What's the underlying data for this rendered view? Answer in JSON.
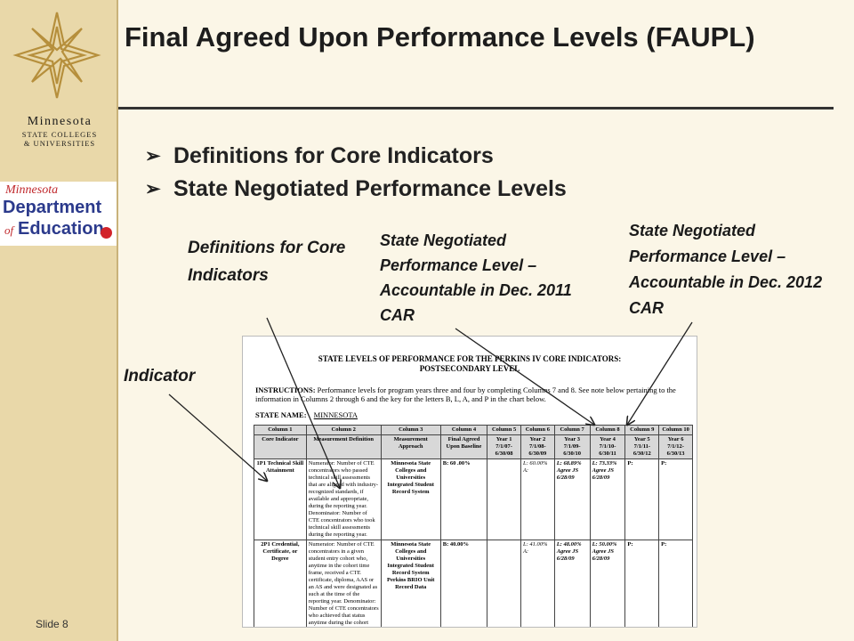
{
  "title": "Final Agreed Upon Performance Levels (FAUPL)",
  "bullets": [
    "Definitions for Core Indicators",
    "State Negotiated Performance Levels"
  ],
  "bullet_icon": "arrow-bullet-icon",
  "slide_number": "Slide 8",
  "logos": {
    "msc": {
      "name": "Minnesota",
      "line2": "STATE COLLEGES",
      "line3": "& UNIVERSITIES"
    },
    "mde": {
      "minnesota": "Minnesota",
      "department": "Department",
      "of": "of",
      "education": "Education"
    }
  },
  "callouts": {
    "definitions": "Definitions for Core Indicators",
    "indicator": "Indicator",
    "snpl_2011": "State Negotiated Performance Level – Accountable in Dec. 2011 CAR",
    "snpl_2012": "State Negotiated Performance Level – Accountable in Dec. 2012 CAR"
  },
  "document": {
    "title_line1": "STATE LEVELS OF PERFORMANCE FOR THE PERKINS IV CORE INDICATORS:",
    "title_line2": "POSTSECONDARY LEVEL",
    "instructions_label": "INSTRUCTIONS:",
    "instructions": "Performance levels for program years three and four by completing Columns 7 and 8. See note below pertaining to the information in Columns 2 through 6 and the key for the letters B, L, A, and P in the chart below.",
    "state_label": "STATE NAME:",
    "state_value": "MINNESOTA",
    "columns": [
      "Column 1",
      "Column 2",
      "Column 3",
      "Column 4",
      "Column 5",
      "Column 6",
      "Column 7",
      "Column 8",
      "Column 9",
      "Column 10"
    ],
    "headers": [
      "Core Indicator",
      "Measurement Definition",
      "Measurement Approach",
      "Final Agreed Upon Baseline",
      "Year 1 7/1/07-6/30/08",
      "Year 2 7/1/08-6/30/09",
      "Year 3 7/1/09-6/30/10",
      "Year 4 7/1/10-6/30/11",
      "Year 5 7/1/11-6/30/12",
      "Year 6 7/1/12-6/30/13"
    ],
    "rows": [
      {
        "indicator": "1P1 Technical Skill Attainment",
        "definition": "Numerator: Number of CTE concentrators who passed technical skill assessments that are aligned with industry-recognized standards, if available and appropriate, during the reporting year. Denominator: Number of CTE concentrators who took technical skill assessments during the reporting year.",
        "approach": "Minnesota State Colleges and Universities Integrated Student Record System",
        "baseline": "B: 60 .00%",
        "year1": "",
        "year2": "L: 60.00% A:",
        "year3": "L: 68.89% Agree JS 6/28/09",
        "year4": "L: 73.33% Agree JS 6/28/09",
        "year5": "P:",
        "year6": "P:"
      },
      {
        "indicator": "2P1 Credential, Certificate, or Degree",
        "definition": "Numerator: Number of CTE concentrators in a given student entry cohort who, anytime in the cohort time frame, received a CTE certificate, diploma, AAS or an AS and were designated as such at the time of the reporting year. Denominator: Number of CTE concentrators who achieved that status anytime during the cohort time frame",
        "approach": "Minnesota State Colleges and Universities Integrated Student Record System Perkins BRIO Unit Record Data",
        "baseline": "B: 40.00%",
        "year1": "",
        "year2": "L: 41.00% A:",
        "year3": "L: 48.00% Agree JS 6/28/09",
        "year4": "L: 50.00% Agree JS 6/28/09",
        "year5": "P:",
        "year6": "P:"
      }
    ]
  }
}
